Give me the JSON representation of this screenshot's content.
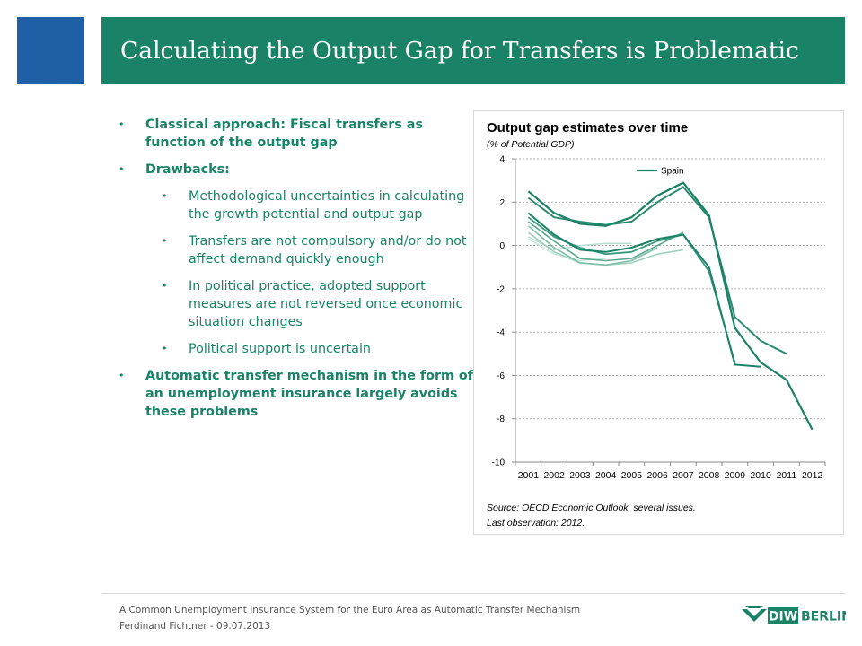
{
  "slide": {
    "title": "Calculating the Output Gap for Transfers is Problematic"
  },
  "bullets": [
    {
      "level": 1,
      "text": "Classical approach: Fiscal transfers as function of the output gap"
    },
    {
      "level": 1,
      "text": "Drawbacks:"
    },
    {
      "level": 2,
      "text": "Methodological uncertainties in calculating the growth potential and output gap"
    },
    {
      "level": 2,
      "text": "Transfers are not compulsory and/or do not affect demand quickly enough"
    },
    {
      "level": 2,
      "text": "In political practice, adopted support measures are not reversed once economic situation changes"
    },
    {
      "level": 2,
      "text": "Political support is uncertain"
    },
    {
      "level": 1,
      "text": "Automatic transfer mechanism in the form of an unemployment insurance largely avoids these problems"
    }
  ],
  "chart_data": {
    "type": "line",
    "title": "Output gap estimates over time",
    "subtitle": "(% of Potential GDP)",
    "x": [
      "2001",
      "2002",
      "2003",
      "2004",
      "2005",
      "2006",
      "2007",
      "2008",
      "2009",
      "2010",
      "2011",
      "2012"
    ],
    "ylim": [
      -10,
      4
    ],
    "yticks": [
      4,
      2,
      0,
      -2,
      -4,
      -6,
      -8,
      -10
    ],
    "grid": true,
    "legend_position": "top-center",
    "legend": [
      {
        "name": "Spain",
        "color": "#1a8266"
      }
    ],
    "source_note": "Source: OECD Economic Outlook, several issues.",
    "last_obs_note": "Last observation: 2012.",
    "series": [
      {
        "color": "#1a8266",
        "width": 2.2,
        "values": [
          2.5,
          1.5,
          1.0,
          0.9,
          1.3,
          2.3,
          2.9,
          1.4,
          -3.8,
          -5.4,
          -6.2,
          -8.5
        ]
      },
      {
        "color": "#2a8a70",
        "width": 2.0,
        "values": [
          2.2,
          1.3,
          1.1,
          0.95,
          1.1,
          2.0,
          2.7,
          1.3,
          -3.3,
          -4.4,
          -5.0,
          null
        ]
      },
      {
        "color": "#1a8266",
        "width": 2.0,
        "values": [
          1.5,
          0.5,
          -0.2,
          -0.3,
          -0.1,
          0.3,
          0.5,
          -1.0,
          -5.5,
          -5.6,
          null,
          null
        ]
      },
      {
        "color": "#3a9a80",
        "width": 1.8,
        "values": [
          1.3,
          0.4,
          -0.1,
          -0.4,
          -0.3,
          0.2,
          0.5,
          -1.2,
          -5.4,
          null,
          null,
          null
        ]
      },
      {
        "color": "#5aaa92",
        "width": 1.6,
        "values": [
          1.1,
          0.2,
          -0.6,
          -0.7,
          -0.6,
          0.0,
          0.6,
          null,
          null,
          null,
          null,
          null
        ]
      },
      {
        "color": "#7dbfa9",
        "width": 1.6,
        "values": [
          0.9,
          -0.1,
          -0.8,
          -0.9,
          -0.7,
          -0.1,
          null,
          null,
          null,
          null,
          null,
          null
        ]
      },
      {
        "color": "#9fcfbe",
        "width": 1.6,
        "values": [
          0.6,
          -0.3,
          -0.8,
          -0.9,
          -0.8,
          -0.4,
          -0.2,
          null,
          null,
          null,
          null,
          null
        ]
      },
      {
        "color": "#b9ddd0",
        "width": 1.5,
        "values": [
          0.4,
          -0.2,
          0.0,
          0.1,
          0.1,
          null,
          null,
          null,
          null,
          null,
          null,
          null
        ]
      },
      {
        "color": "#c9e6dc",
        "width": 1.5,
        "values": [
          0.3,
          -0.4,
          -0.7,
          -0.6,
          null,
          null,
          null,
          null,
          null,
          null,
          null,
          null
        ]
      }
    ]
  },
  "footer": {
    "line1": "A Common Unemployment Insurance System for the Euro Area as Automatic Transfer Mechanism",
    "line2": "Ferdinand Fichtner - 09.07.2013"
  },
  "logo": {
    "text1": "DIW",
    "text2": "BERLIN",
    "color": "#1a8266"
  }
}
